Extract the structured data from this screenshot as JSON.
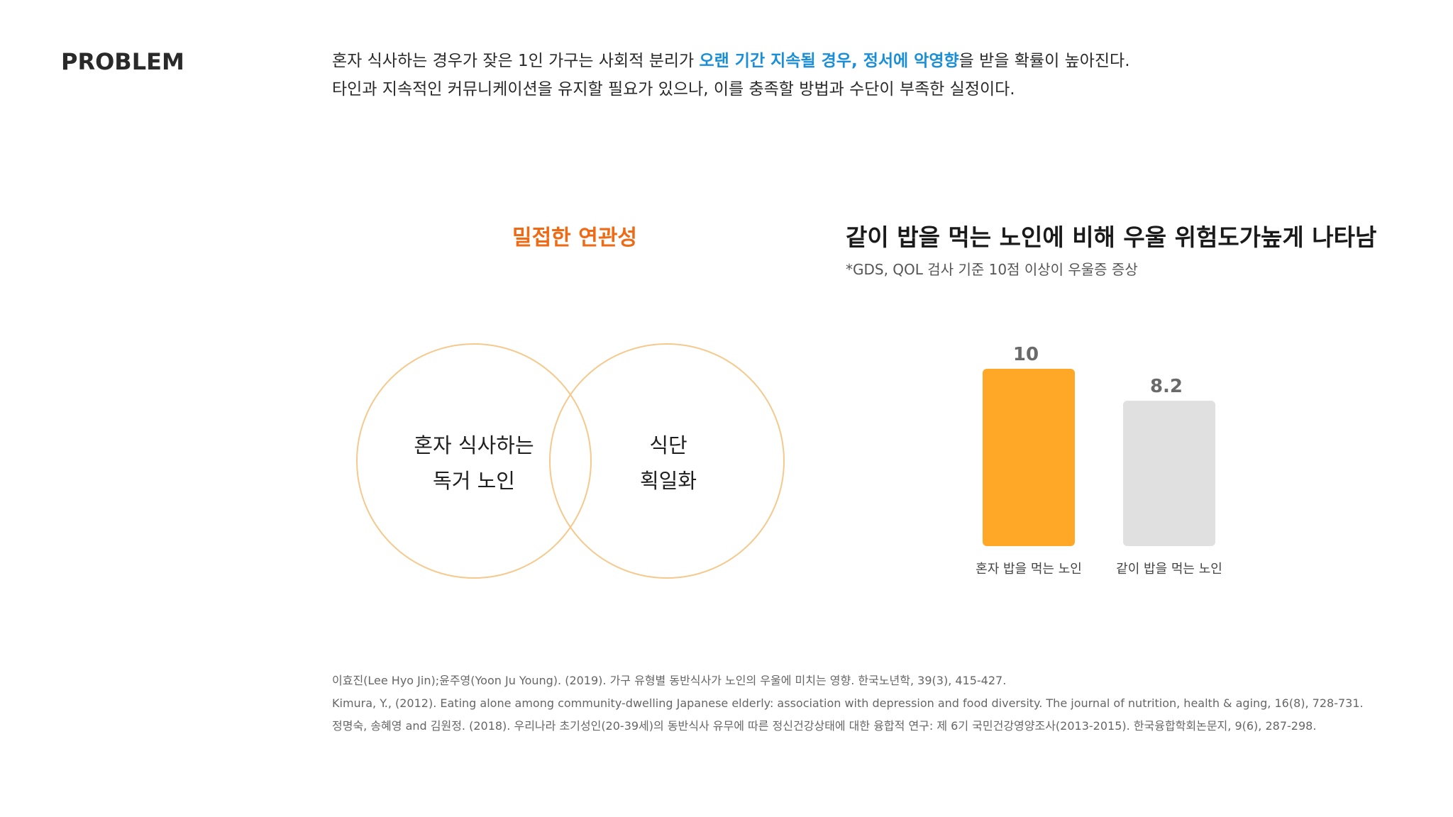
{
  "header": {
    "label": "PROBLEM"
  },
  "intro": {
    "line1_pre": "혼자 식사하는 경우가 잦은 1인 가구는 사회적 분리가 ",
    "line1_highlight": "오랜 기간 지속될 경우, 정서에 악영향",
    "line1_post": "을 받을 확률이 높아진다.",
    "line2": "타인과 지속적인 커뮤니케이션을 유지할 필요가 있으나, 이를 충족할 방법과 수단이 부족한 실정이다."
  },
  "venn": {
    "title": "밀접한 연관성",
    "left_lines": [
      "혼자 식사하는",
      "독거 노인"
    ],
    "right_lines": [
      "식단",
      "획일화"
    ],
    "stroke_color": "#f5c98c"
  },
  "chart_data": {
    "type": "bar",
    "title": "같이 밥을 먹는 노인에 비해 우울 위험도가높게 나타남",
    "subtitle": "*GDS, QOL 검사 기준 10점 이상이 우울증 증상",
    "categories": [
      "혼자 밥을 먹는 노인",
      "같이 밥을 먹는 노인"
    ],
    "values": [
      10,
      8.2
    ],
    "value_labels": [
      "10",
      "8.2"
    ],
    "colors": [
      "#ffa726",
      "#e0e0e0"
    ],
    "ylim": [
      0,
      10
    ],
    "grid": false
  },
  "references": [
    "이효진(Lee Hyo Jin);윤주영(Yoon Ju Young). (2019). 가구 유형별 동반식사가 노인의 우울에 미치는 영향. 한국노년학, 39(3), 415-427.",
    "Kimura, Y.,  (2012). Eating alone among community-dwelling Japanese elderly: association with depression and food diversity. The journal of nutrition, health & aging, 16(8), 728-731.",
    "정명숙, 송혜영 and 김원정. (2018). 우리나라 초기성인(20-39세)의 동반식사 유무에 따른 정신건강상태에 대한 융합적 연구: 제 6기 국민건강영양조사(2013-2015). 한국융합학회논문지, 9(6), 287-298."
  ]
}
